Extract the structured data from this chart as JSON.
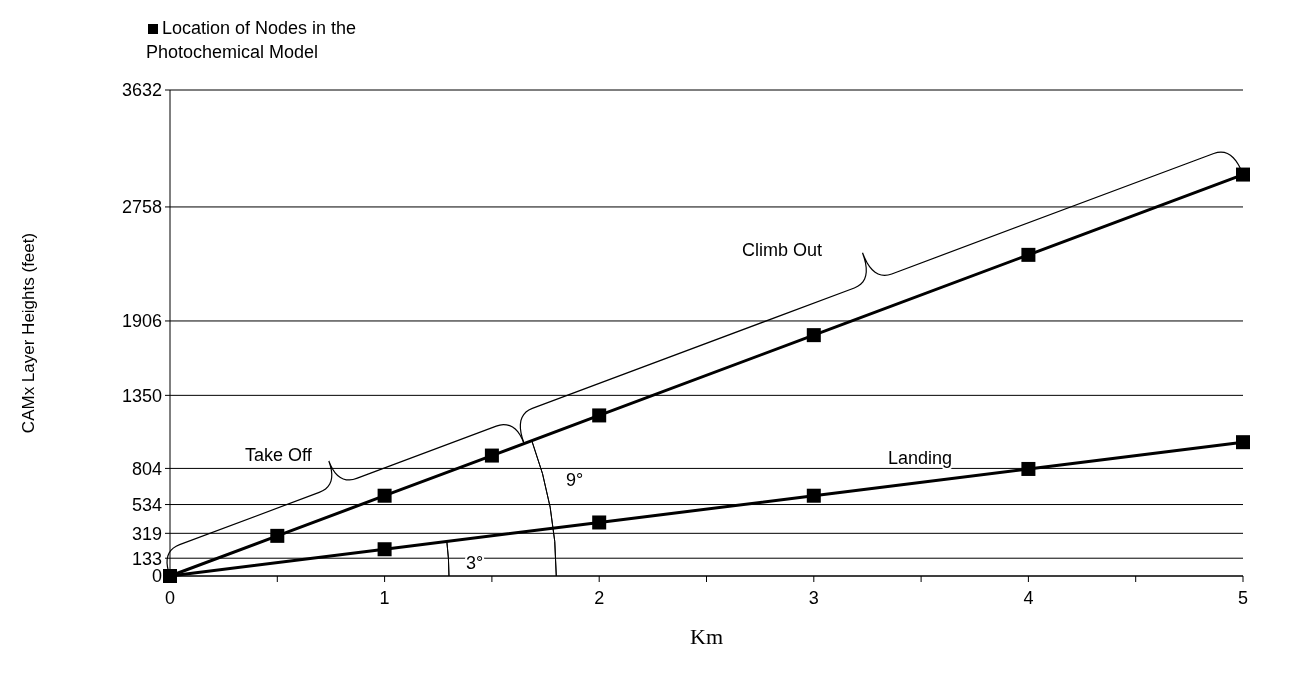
{
  "chart_data": {
    "type": "line",
    "xlabel": "Km",
    "ylabel": "CAMx Layer Heights (feet)",
    "xlim": [
      0,
      5
    ],
    "xticks": [
      0,
      {
        "value": 0.5,
        "label": null
      },
      1,
      {
        "value": 1.5,
        "label": null
      },
      2,
      {
        "value": 2.5,
        "label": null
      },
      3,
      {
        "value": 3.5,
        "label": null
      },
      4,
      {
        "value": 4.5,
        "label": null
      },
      5
    ],
    "ylim": [
      0,
      3632
    ],
    "yticks": [
      0,
      133,
      319,
      534,
      804,
      1350,
      1906,
      2758,
      3632
    ],
    "grid": "y",
    "legend": "top left",
    "marker": "square",
    "line_style": "solid",
    "series": [
      {
        "name": "Location of Nodes in the Photochemical Model",
        "color": "#000000",
        "x": [
          0,
          0.5,
          1,
          1.5,
          2,
          3,
          4,
          5
        ],
        "values": [
          0,
          300,
          600,
          900,
          1200,
          1800,
          2400,
          3000
        ]
      },
      {
        "color": "#000000",
        "x": [
          0,
          1,
          2,
          3,
          4,
          5
        ],
        "values": [
          0,
          200,
          400,
          600,
          800,
          1000
        ]
      }
    ],
    "annotations": [
      "Take Off",
      "Climb Out",
      "Landing",
      "9°",
      "3°"
    ]
  }
}
